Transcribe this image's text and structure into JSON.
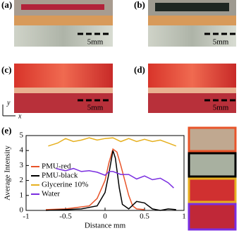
{
  "panels": [
    {
      "label": "(a)",
      "scale": "5mm"
    },
    {
      "label": "(b)",
      "scale": "5mm"
    },
    {
      "label": "(c)",
      "scale": "5mm"
    },
    {
      "label": "(d)",
      "scale": "5mm"
    },
    {
      "label": "(e)"
    }
  ],
  "axes_indicator": {
    "y": "y",
    "x": "x"
  },
  "chart_data": {
    "type": "line",
    "xlabel": "Distance mm",
    "ylabel": "Average Intensity",
    "xlim": [
      -1,
      1
    ],
    "ylim": [
      0,
      5
    ],
    "xticks": [
      -1,
      -0.5,
      0,
      0.5,
      1
    ],
    "yticks": [
      0,
      1,
      2,
      3,
      4,
      5
    ],
    "series": [
      {
        "name": "PMU-red",
        "color": "#e8542a",
        "x": [
          -0.75,
          -0.5,
          -0.35,
          -0.2,
          -0.1,
          0,
          0.05,
          0.1,
          0.15,
          0.2,
          0.25,
          0.3,
          0.35,
          0.4,
          0.5
        ],
        "values": [
          0.05,
          0.1,
          0.2,
          0.3,
          0.8,
          2.0,
          3.2,
          4.1,
          3.9,
          3.0,
          2.0,
          1.0,
          0.3,
          0.1,
          0.05
        ]
      },
      {
        "name": "PMU-black",
        "color": "#000000",
        "x": [
          -0.75,
          -0.5,
          -0.3,
          -0.1,
          0,
          0.05,
          0.1,
          0.13,
          0.18,
          0.22,
          0.3,
          0.4,
          0.5,
          0.6,
          0.7,
          0.8,
          0.9
        ],
        "values": [
          0.0,
          0.05,
          0.1,
          0.3,
          1.2,
          2.5,
          4.0,
          3.5,
          1.5,
          0.4,
          0.1,
          0.6,
          0.5,
          0.1,
          0.0,
          0.1,
          0.05
        ]
      },
      {
        "name": "Glycerine 10%",
        "color": "#e6b020",
        "x": [
          -0.72,
          -0.6,
          -0.5,
          -0.4,
          -0.3,
          -0.2,
          -0.1,
          0,
          0.1,
          0.2,
          0.3,
          0.4,
          0.5,
          0.6,
          0.7,
          0.8,
          0.9
        ],
        "values": [
          4.3,
          4.5,
          4.8,
          4.6,
          4.7,
          4.85,
          4.7,
          4.8,
          4.85,
          4.6,
          4.8,
          4.6,
          4.75,
          4.6,
          4.7,
          4.5,
          4.3
        ]
      },
      {
        "name": "Water",
        "color": "#7a2ee0",
        "x": [
          -0.62,
          -0.5,
          -0.4,
          -0.3,
          -0.2,
          -0.1,
          0,
          0.05,
          0.1,
          0.2,
          0.3,
          0.4,
          0.5,
          0.6,
          0.7,
          0.8,
          0.87
        ],
        "values": [
          2.8,
          2.65,
          2.8,
          2.6,
          2.65,
          2.55,
          2.35,
          2.6,
          2.6,
          2.4,
          2.4,
          2.1,
          2.3,
          2.05,
          2.15,
          1.85,
          1.5
        ]
      }
    ]
  }
}
